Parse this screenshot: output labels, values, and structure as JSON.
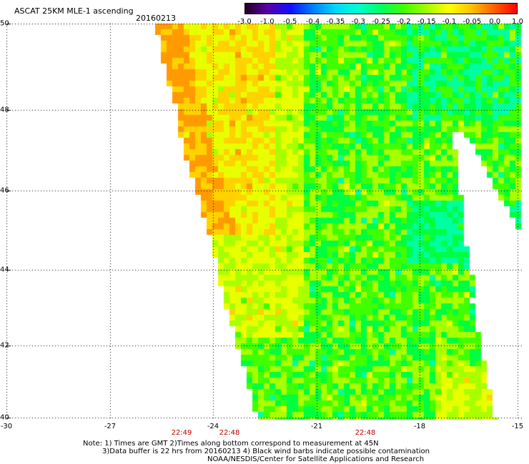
{
  "header": {
    "title": "ASCAT 25KM MLE-1 ascending",
    "date": "20160213"
  },
  "colorbar": {
    "ticks": [
      "-3.0",
      "-1.0",
      "-0.5",
      "-0.4",
      "-0.35",
      "-0.3",
      "-0.25",
      "-0.2",
      "-0.15",
      "-0.1",
      "-0.05",
      "0.0",
      "1.0"
    ],
    "colors": [
      "#220022",
      "#5a00a8",
      "#1010ff",
      "#0080ff",
      "#00d8ff",
      "#00ffcc",
      "#00ff60",
      "#40ff00",
      "#a0ff00",
      "#ffff00",
      "#ffc000",
      "#ff6000",
      "#ff0000"
    ]
  },
  "map": {
    "lat_labels": [
      "50",
      "48",
      "46",
      "44",
      "42",
      "40"
    ],
    "lon_labels": [
      "-30",
      "-27",
      "-24",
      "-21",
      "-18",
      "-15"
    ],
    "time_labels": [
      "22:49",
      "22:48",
      "22:48"
    ],
    "swath_colors": {
      "orange": "#ff9a00",
      "yellow_orange": "#ffd200",
      "yellow": "#e8ff00",
      "yellow_green": "#a8ff00",
      "green": "#40ff00",
      "bright_green": "#00ff40",
      "cyan_green": "#00ffa0"
    }
  },
  "notes": {
    "line1": "Note: 1) Times are GMT 2)Times along bottom correspond to measurement at 45N",
    "line2": "3)Data buffer is 22 hrs from 20160213 4) Black wind barbs indicate possible contamination",
    "line3": "NOAA/NESDIS/Center for Satellite Applications and Research"
  }
}
